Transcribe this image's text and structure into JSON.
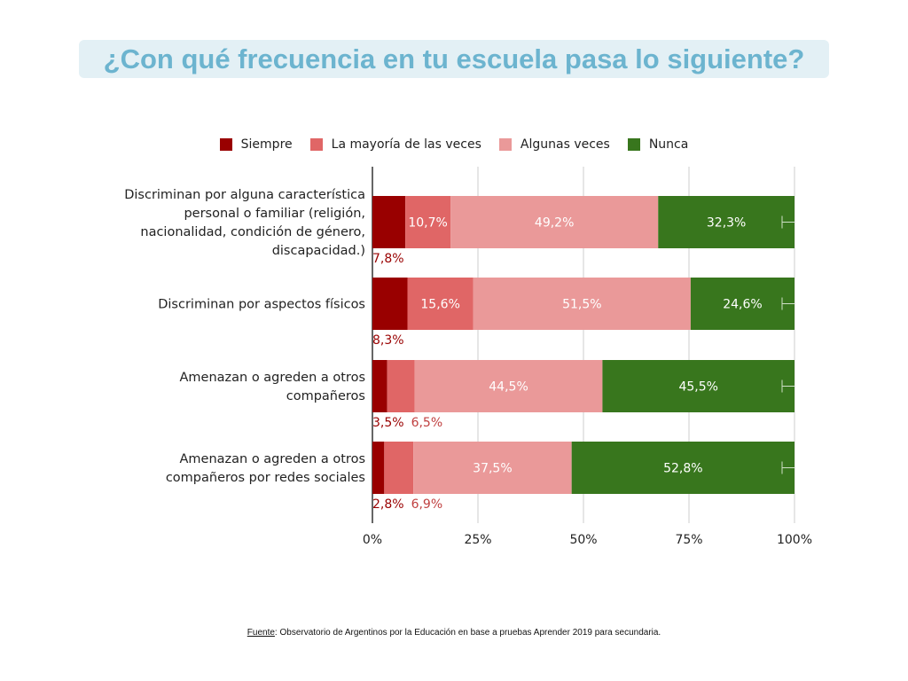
{
  "title": "¿Con qué frecuencia en tu escuela pasa lo siguiente?",
  "source_label": "Fuente",
  "source_text": ": Observatorio de Argentinos por la Educación en base a pruebas Aprender 2019 para secundaria.",
  "chart_data": {
    "type": "bar",
    "orientation": "horizontal",
    "stacked": true,
    "categories": [
      [
        "Discriminan por alguna característica",
        "personal o familiar (religión,",
        "nacionalidad, condición de género,",
        "discapacidad.)"
      ],
      [
        "Discriminan por aspectos físicos"
      ],
      [
        "Amenazan o agreden a otros",
        "compañeros"
      ],
      [
        "Amenazan o agreden a otros",
        "compañeros por redes sociales"
      ]
    ],
    "series": [
      {
        "name": "Siempre",
        "color": "#990000",
        "values": [
          7.8,
          8.3,
          3.5,
          2.8
        ],
        "labels": [
          "7,8%",
          "8,3%",
          "3,5%",
          "2,8%"
        ]
      },
      {
        "name": "La mayoría de las veces",
        "color": "#e06666",
        "values": [
          10.7,
          15.6,
          6.5,
          6.9
        ],
        "labels": [
          "10,7%",
          "15,6%",
          "6,5%",
          "6,9%"
        ]
      },
      {
        "name": "Algunas veces",
        "color": "#ea9999",
        "values": [
          49.2,
          51.5,
          44.5,
          37.5
        ],
        "labels": [
          "49,2%",
          "51,5%",
          "44,5%",
          "37,5%"
        ]
      },
      {
        "name": "Nunca",
        "color": "#38761d",
        "values": [
          32.3,
          24.6,
          45.5,
          52.8
        ],
        "labels": [
          "32,3%",
          "24,6%",
          "45,5%",
          "52,8%"
        ]
      }
    ],
    "xlim": [
      0,
      100
    ],
    "xticks": [
      "0%",
      "25%",
      "50%",
      "75%",
      "100%"
    ],
    "grid": true,
    "legend": "top",
    "error_bars": true
  }
}
